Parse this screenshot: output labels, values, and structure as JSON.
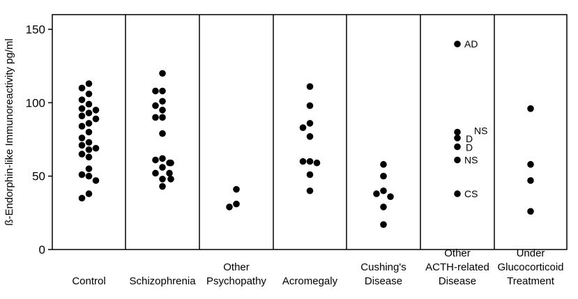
{
  "chart_data": {
    "type": "scatter",
    "title": "",
    "ylabel": "ß-Endorphin-like Immunoreactivity  pg/ml",
    "xlabel": "",
    "ylim": [
      0,
      160
    ],
    "yticks": [
      0,
      50,
      100,
      150
    ],
    "grid": false,
    "groups": [
      {
        "label_lines": [
          "Control"
        ],
        "points": [
          {
            "y": 113
          },
          {
            "y": 110
          },
          {
            "y": 106
          },
          {
            "y": 102
          },
          {
            "y": 99
          },
          {
            "y": 96
          },
          {
            "y": 95
          },
          {
            "y": 93
          },
          {
            "y": 91
          },
          {
            "y": 89
          },
          {
            "y": 86
          },
          {
            "y": 84
          },
          {
            "y": 80
          },
          {
            "y": 76
          },
          {
            "y": 73
          },
          {
            "y": 71
          },
          {
            "y": 69
          },
          {
            "y": 68
          },
          {
            "y": 65
          },
          {
            "y": 63
          },
          {
            "y": 55
          },
          {
            "y": 51
          },
          {
            "y": 50
          },
          {
            "y": 47
          },
          {
            "y": 38
          },
          {
            "y": 35
          }
        ]
      },
      {
        "label_lines": [
          "Schizophrenia"
        ],
        "points": [
          {
            "y": 120
          },
          {
            "y": 108
          },
          {
            "y": 108
          },
          {
            "y": 101
          },
          {
            "y": 98
          },
          {
            "y": 95
          },
          {
            "y": 90
          },
          {
            "y": 90
          },
          {
            "y": 79
          },
          {
            "y": 62
          },
          {
            "y": 61
          },
          {
            "y": 59
          },
          {
            "y": 59
          },
          {
            "y": 56
          },
          {
            "y": 52
          },
          {
            "y": 52
          },
          {
            "y": 48
          },
          {
            "y": 48
          },
          {
            "y": 43
          }
        ]
      },
      {
        "label_lines": [
          "Other",
          "Psychopathy"
        ],
        "points": [
          {
            "y": 41
          },
          {
            "y": 31
          },
          {
            "y": 29
          }
        ]
      },
      {
        "label_lines": [
          "Acromegaly"
        ],
        "points": [
          {
            "y": 111
          },
          {
            "y": 98
          },
          {
            "y": 86
          },
          {
            "y": 83
          },
          {
            "y": 77
          },
          {
            "y": 60
          },
          {
            "y": 60
          },
          {
            "y": 59
          },
          {
            "y": 51
          },
          {
            "y": 40
          }
        ]
      },
      {
        "label_lines": [
          "Cushing's",
          "Disease"
        ],
        "points": [
          {
            "y": 58
          },
          {
            "y": 50
          },
          {
            "y": 40
          },
          {
            "y": 38
          },
          {
            "y": 36
          },
          {
            "y": 29
          },
          {
            "y": 17
          }
        ]
      },
      {
        "label_lines": [
          "Other",
          "ACTH-related",
          "Disease"
        ],
        "points": [
          {
            "y": 140,
            "label": "AD"
          },
          {
            "y": 80,
            "label": "NS"
          },
          {
            "y": 76,
            "label": "D"
          },
          {
            "y": 70,
            "label": "D"
          },
          {
            "y": 61,
            "label": "NS"
          },
          {
            "y": 38,
            "label": "CS"
          }
        ]
      },
      {
        "label_lines": [
          "Under",
          "Glucocorticoid",
          "Treatment"
        ],
        "points": [
          {
            "y": 96
          },
          {
            "y": 58
          },
          {
            "y": 47
          },
          {
            "y": 26
          }
        ]
      }
    ]
  }
}
